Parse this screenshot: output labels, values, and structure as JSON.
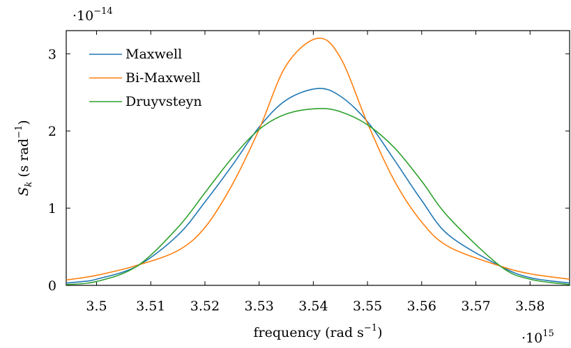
{
  "chart_data": {
    "type": "line",
    "xlabel": "frequency (rad s",
    "xlabel_sup": "−1",
    "xlabel_close": ")",
    "ylabel_main": "S",
    "ylabel_sub": "k",
    "ylabel_units": " (s rad",
    "ylabel_sup": "−1",
    "ylabel_close": ")",
    "x_multiplier_base": "·10",
    "x_multiplier_exp": "15",
    "y_multiplier_base": "·10",
    "y_multiplier_exp": "−14",
    "xlim": [
      3.4944,
      3.5873
    ],
    "ylim": [
      0,
      3.3
    ],
    "xticks": [
      3.5,
      3.51,
      3.52,
      3.53,
      3.54,
      3.55,
      3.56,
      3.57,
      3.58
    ],
    "xtick_labels": [
      "3.5",
      "3.51",
      "3.52",
      "3.53",
      "3.54",
      "3.55",
      "3.56",
      "3.57",
      "3.58"
    ],
    "yticks": [
      0,
      1,
      2,
      3
    ],
    "ytick_labels": [
      "0",
      "1",
      "2",
      "3"
    ],
    "grid": false,
    "legend_position": "top-left",
    "series": [
      {
        "name": "Maxwell",
        "color": "#1f77b4",
        "x": [
          3.4944,
          3.4975,
          3.5,
          3.5075,
          3.515,
          3.52,
          3.525,
          3.53,
          3.535,
          3.5408,
          3.545,
          3.55,
          3.555,
          3.56,
          3.565,
          3.5745,
          3.58,
          3.5873
        ],
        "y": [
          0.03,
          0.05,
          0.08,
          0.25,
          0.65,
          1.08,
          1.55,
          2.05,
          2.4,
          2.55,
          2.45,
          2.12,
          1.62,
          1.1,
          0.65,
          0.25,
          0.1,
          0.03
        ]
      },
      {
        "name": "Bi-Maxwell",
        "color": "#ff7f0e",
        "x": [
          3.4944,
          3.5,
          3.5075,
          3.515,
          3.52,
          3.525,
          3.53,
          3.535,
          3.5408,
          3.545,
          3.55,
          3.555,
          3.56,
          3.565,
          3.5745,
          3.58,
          3.5873
        ],
        "y": [
          0.07,
          0.13,
          0.26,
          0.45,
          0.75,
          1.3,
          2.02,
          2.85,
          3.2,
          2.95,
          2.1,
          1.35,
          0.82,
          0.5,
          0.25,
          0.15,
          0.08
        ]
      },
      {
        "name": "Druyvsteyn",
        "color": "#2ca02c",
        "x": [
          3.4944,
          3.5,
          3.5075,
          3.515,
          3.52,
          3.525,
          3.53,
          3.535,
          3.5408,
          3.545,
          3.55,
          3.555,
          3.56,
          3.565,
          3.5745,
          3.58,
          3.5873
        ],
        "y": [
          0.01,
          0.05,
          0.25,
          0.75,
          1.2,
          1.65,
          2.02,
          2.22,
          2.29,
          2.25,
          2.08,
          1.78,
          1.35,
          0.88,
          0.25,
          0.08,
          0.01
        ]
      }
    ]
  }
}
